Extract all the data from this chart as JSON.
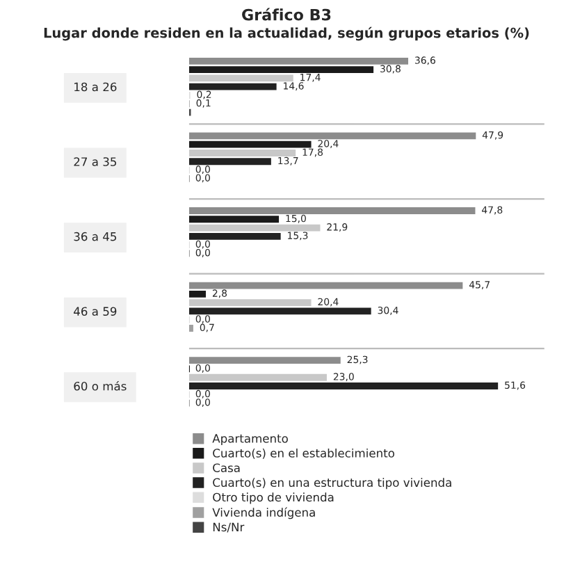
{
  "chart_data": {
    "type": "bar",
    "orientation": "horizontal",
    "title": "Gráfico B3",
    "subtitle": "Lugar donde residen en la actualidad, según grupos etarios (%)",
    "categories": [
      "18 a 26",
      "27 a 35",
      "36 a 45",
      "46 a 59",
      "60 o más"
    ],
    "series": [
      {
        "name": "Apartamento",
        "color": "#8c8c8c",
        "values": [
          36.6,
          47.9,
          47.8,
          45.7,
          25.3
        ],
        "value_labels": [
          "36,6",
          "47,9",
          "47,8",
          "45,7",
          "25,3"
        ]
      },
      {
        "name": "Cuarto(s) en el establecimiento",
        "color": "#1a1a1a",
        "values": [
          30.8,
          20.4,
          15.0,
          2.8,
          0.0
        ],
        "value_labels": [
          "30,8",
          "20,4",
          "15,0",
          "2,8",
          "0,0"
        ]
      },
      {
        "name": "Casa",
        "color": "#c8c8c8",
        "values": [
          17.4,
          17.8,
          21.9,
          20.4,
          23.0
        ],
        "value_labels": [
          "17,4",
          "17,8",
          "21,9",
          "20,4",
          "23,0"
        ]
      },
      {
        "name": "Cuarto(s) en una estructura tipo vivienda",
        "color": "#222222",
        "values": [
          14.6,
          13.7,
          15.3,
          30.4,
          51.6
        ],
        "value_labels": [
          "14,6",
          "13,7",
          "15,3",
          "30,4",
          "51,6"
        ]
      },
      {
        "name": "Otro tipo de vivienda",
        "color": "#dddddd",
        "values": [
          0.2,
          0.0,
          0.0,
          0.0,
          0.0
        ],
        "value_labels": [
          "0,2",
          "0,0",
          "0,0",
          "0,0",
          "0,0"
        ]
      },
      {
        "name": "Vivienda indígena",
        "color": "#a0a0a0",
        "values": [
          0.1,
          0.0,
          0.0,
          0.7,
          0.0
        ],
        "value_labels": [
          "0,1",
          "0,0",
          "0,0",
          "0,7",
          "0,0"
        ]
      },
      {
        "name": "Ns/Nr",
        "color": "#444444",
        "values": [
          0.3,
          null,
          null,
          null,
          null
        ],
        "value_labels": [
          null,
          null,
          null,
          null,
          null
        ]
      }
    ],
    "legend": "bottom"
  }
}
